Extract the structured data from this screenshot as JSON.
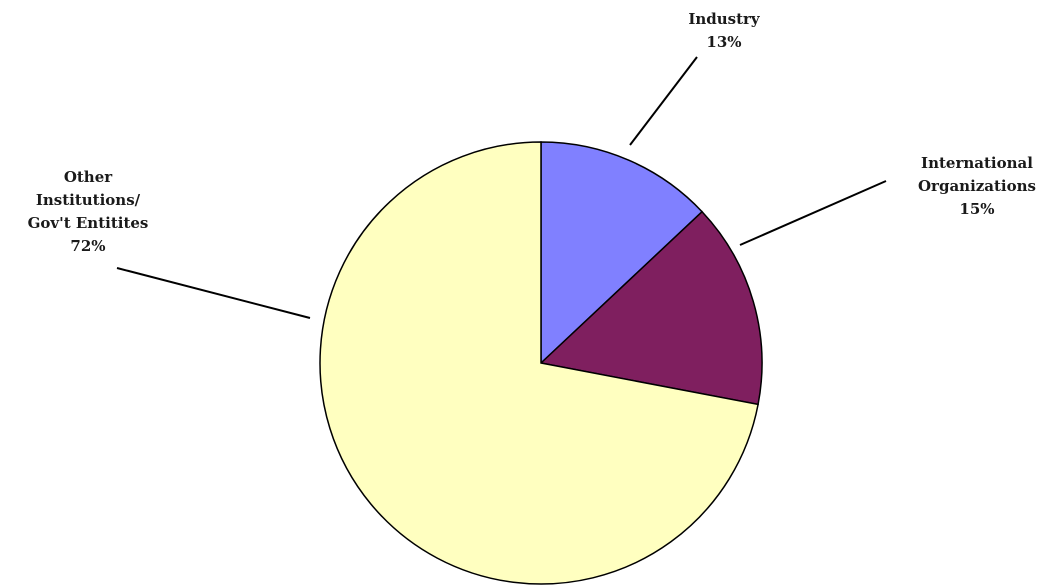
{
  "chart_data": {
    "type": "pie",
    "title": "",
    "start_angle_deg": 0,
    "direction": "clockwise",
    "slices": [
      {
        "label_lines": [
          "Industry"
        ],
        "value": 13,
        "pct_label": "13%",
        "color": "#8080ff"
      },
      {
        "label_lines": [
          "International",
          "Organizations"
        ],
        "value": 15,
        "pct_label": "15%",
        "color": "#7f1f5f"
      },
      {
        "label_lines": [
          "Other",
          "Institutions/",
          "Gov't Entitites"
        ],
        "value": 72,
        "pct_label": "72%",
        "color": "#ffffc0"
      }
    ]
  }
}
